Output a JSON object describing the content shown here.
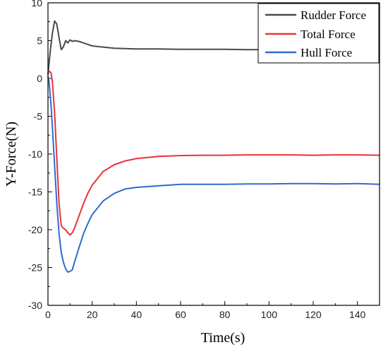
{
  "chart_data": {
    "type": "line",
    "title": "",
    "xlabel": "Time(s)",
    "ylabel": "Y-Force(N)",
    "xlim": [
      0,
      150
    ],
    "ylim": [
      -30,
      10
    ],
    "xticks": [
      0,
      20,
      40,
      60,
      80,
      100,
      120,
      140
    ],
    "yticks": [
      10,
      5,
      0,
      -5,
      -10,
      -15,
      -20,
      -25,
      -30
    ],
    "grid": false,
    "legend_position": "top-right",
    "series": [
      {
        "name": "Rudder Force",
        "color": "#4a4a4a",
        "x": [
          0,
          1,
          2,
          3,
          4,
          5,
          6,
          7,
          8,
          9,
          10,
          11,
          12,
          14,
          16,
          18,
          20,
          25,
          30,
          35,
          40,
          50,
          60,
          70,
          80,
          90,
          100,
          110,
          120,
          130,
          140,
          150
        ],
        "y": [
          0.5,
          3.5,
          6.0,
          7.6,
          7.2,
          5.4,
          3.8,
          4.2,
          5.0,
          4.7,
          5.1,
          4.9,
          5.0,
          4.9,
          4.7,
          4.5,
          4.3,
          4.15,
          4.0,
          3.95,
          3.9,
          3.9,
          3.85,
          3.85,
          3.85,
          3.8,
          3.8,
          3.85,
          3.8,
          3.85,
          3.85,
          3.85
        ]
      },
      {
        "name": "Total Force",
        "color": "#e8343a",
        "x": [
          0,
          0.5,
          1,
          1.5,
          2,
          3,
          4,
          5,
          6,
          7,
          8,
          9,
          10,
          11,
          12,
          14,
          16,
          18,
          20,
          25,
          30,
          35,
          40,
          50,
          60,
          70,
          80,
          90,
          100,
          110,
          120,
          130,
          140,
          150
        ],
        "y": [
          0.8,
          0.9,
          0.9,
          0.6,
          -0.5,
          -4.5,
          -10.5,
          -16.5,
          -19.5,
          -19.8,
          -20.0,
          -20.4,
          -20.7,
          -20.4,
          -19.8,
          -18.2,
          -16.6,
          -15.2,
          -14.1,
          -12.3,
          -11.4,
          -10.9,
          -10.6,
          -10.3,
          -10.2,
          -10.15,
          -10.15,
          -10.1,
          -10.1,
          -10.1,
          -10.15,
          -10.1,
          -10.1,
          -10.15
        ]
      },
      {
        "name": "Hull Force",
        "color": "#2f6bd1",
        "x": [
          0,
          0.5,
          1,
          1.5,
          2,
          3,
          4,
          5,
          6,
          7,
          8,
          9,
          10,
          11,
          12,
          14,
          16,
          18,
          20,
          25,
          30,
          35,
          40,
          50,
          60,
          70,
          80,
          90,
          100,
          110,
          120,
          130,
          140,
          150
        ],
        "y": [
          0.3,
          -0.5,
          -2.0,
          -4.0,
          -6.5,
          -11.5,
          -16.5,
          -20.5,
          -23.0,
          -24.3,
          -25.2,
          -25.6,
          -25.5,
          -25.3,
          -24.3,
          -22.4,
          -20.6,
          -19.2,
          -18.0,
          -16.2,
          -15.2,
          -14.6,
          -14.4,
          -14.2,
          -14.0,
          -14.0,
          -14.0,
          -13.95,
          -13.95,
          -13.9,
          -13.9,
          -13.95,
          -13.9,
          -14.0
        ]
      }
    ]
  }
}
